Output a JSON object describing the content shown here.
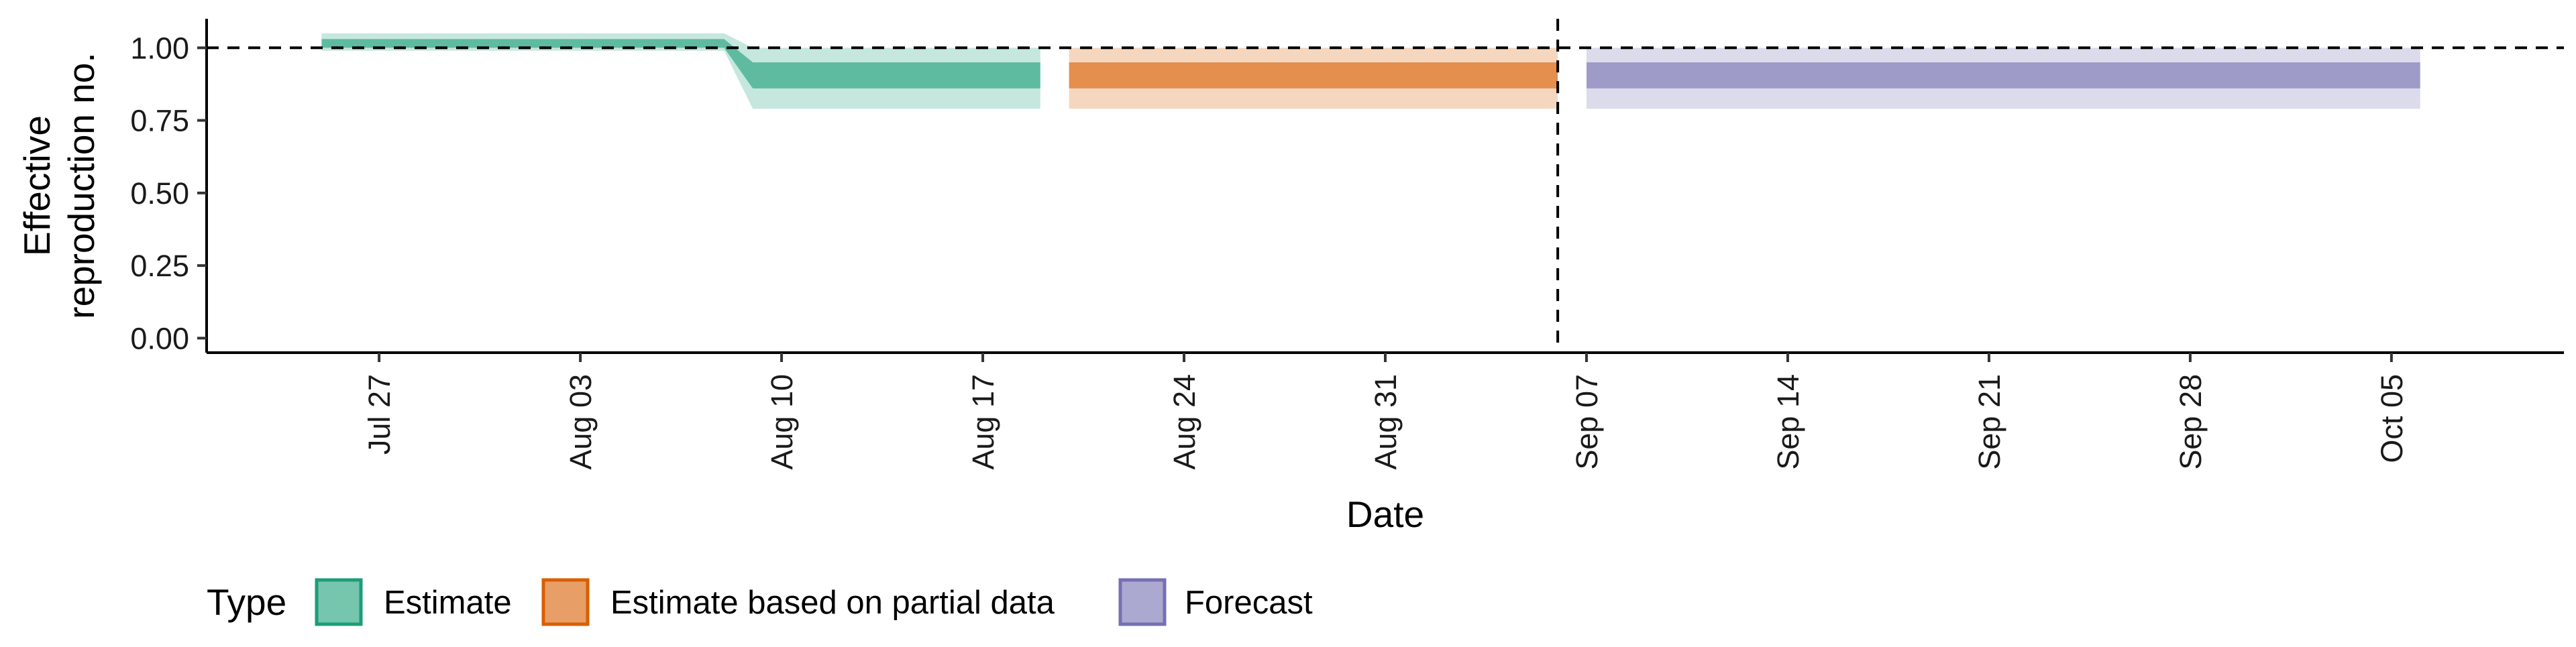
{
  "chart_data": {
    "type": "area",
    "xlabel": "Date",
    "ylabel_lines": [
      "Effective",
      "reproduction no."
    ],
    "ylim": [
      -0.05,
      1.1
    ],
    "xlim": [
      "2020-07-21",
      "2020-10-11"
    ],
    "y_ticks": [
      {
        "value": 0.0,
        "label": "0.00"
      },
      {
        "value": 0.25,
        "label": "0.25"
      },
      {
        "value": 0.5,
        "label": "0.50"
      },
      {
        "value": 0.75,
        "label": "0.75"
      },
      {
        "value": 1.0,
        "label": "1.00"
      }
    ],
    "x_ticks": [
      {
        "date": "2020-07-27",
        "label": "Jul 27"
      },
      {
        "date": "2020-08-03",
        "label": "Aug 03"
      },
      {
        "date": "2020-08-10",
        "label": "Aug 10"
      },
      {
        "date": "2020-08-17",
        "label": "Aug 17"
      },
      {
        "date": "2020-08-24",
        "label": "Aug 24"
      },
      {
        "date": "2020-08-31",
        "label": "Aug 31"
      },
      {
        "date": "2020-09-07",
        "label": "Sep 07"
      },
      {
        "date": "2020-09-14",
        "label": "Sep 14"
      },
      {
        "date": "2020-09-21",
        "label": "Sep 21"
      },
      {
        "date": "2020-09-28",
        "label": "Sep 28"
      },
      {
        "date": "2020-10-05",
        "label": "Oct 05"
      }
    ],
    "reference_line_y": 1.0,
    "reference_line_date": "2020-09-06",
    "grid": false,
    "legend_title": "Type",
    "legend_position": "bottom-left",
    "series": [
      {
        "name": "Estimate",
        "color": "#1b9e77",
        "inner_opacity": 0.6,
        "outer_opacity": 0.25,
        "points": [
          {
            "date": "2020-07-25",
            "lower_90": 0.99,
            "lower_50": 1.0,
            "upper_50": 1.03,
            "upper_90": 1.05
          },
          {
            "date": "2020-08-08",
            "lower_90": 0.99,
            "lower_50": 1.0,
            "upper_50": 1.03,
            "upper_90": 1.05
          },
          {
            "date": "2020-08-09",
            "lower_90": 0.79,
            "lower_50": 0.86,
            "upper_50": 0.95,
            "upper_90": 1.0
          },
          {
            "date": "2020-08-19",
            "lower_90": 0.79,
            "lower_50": 0.86,
            "upper_50": 0.95,
            "upper_90": 1.0
          }
        ]
      },
      {
        "name": "Estimate based on partial data",
        "color": "#d95f02",
        "inner_opacity": 0.6,
        "outer_opacity": 0.25,
        "points": [
          {
            "date": "2020-08-20",
            "lower_90": 0.79,
            "lower_50": 0.86,
            "upper_50": 0.95,
            "upper_90": 1.0
          },
          {
            "date": "2020-09-06",
            "lower_90": 0.79,
            "lower_50": 0.86,
            "upper_50": 0.95,
            "upper_90": 1.0
          }
        ]
      },
      {
        "name": "Forecast",
        "color": "#7570b3",
        "inner_opacity": 0.6,
        "outer_opacity": 0.25,
        "points": [
          {
            "date": "2020-09-07",
            "lower_90": 0.79,
            "lower_50": 0.86,
            "upper_50": 0.95,
            "upper_90": 1.0
          },
          {
            "date": "2020-10-06",
            "lower_90": 0.79,
            "lower_50": 0.86,
            "upper_50": 0.95,
            "upper_90": 1.0
          }
        ]
      }
    ]
  }
}
